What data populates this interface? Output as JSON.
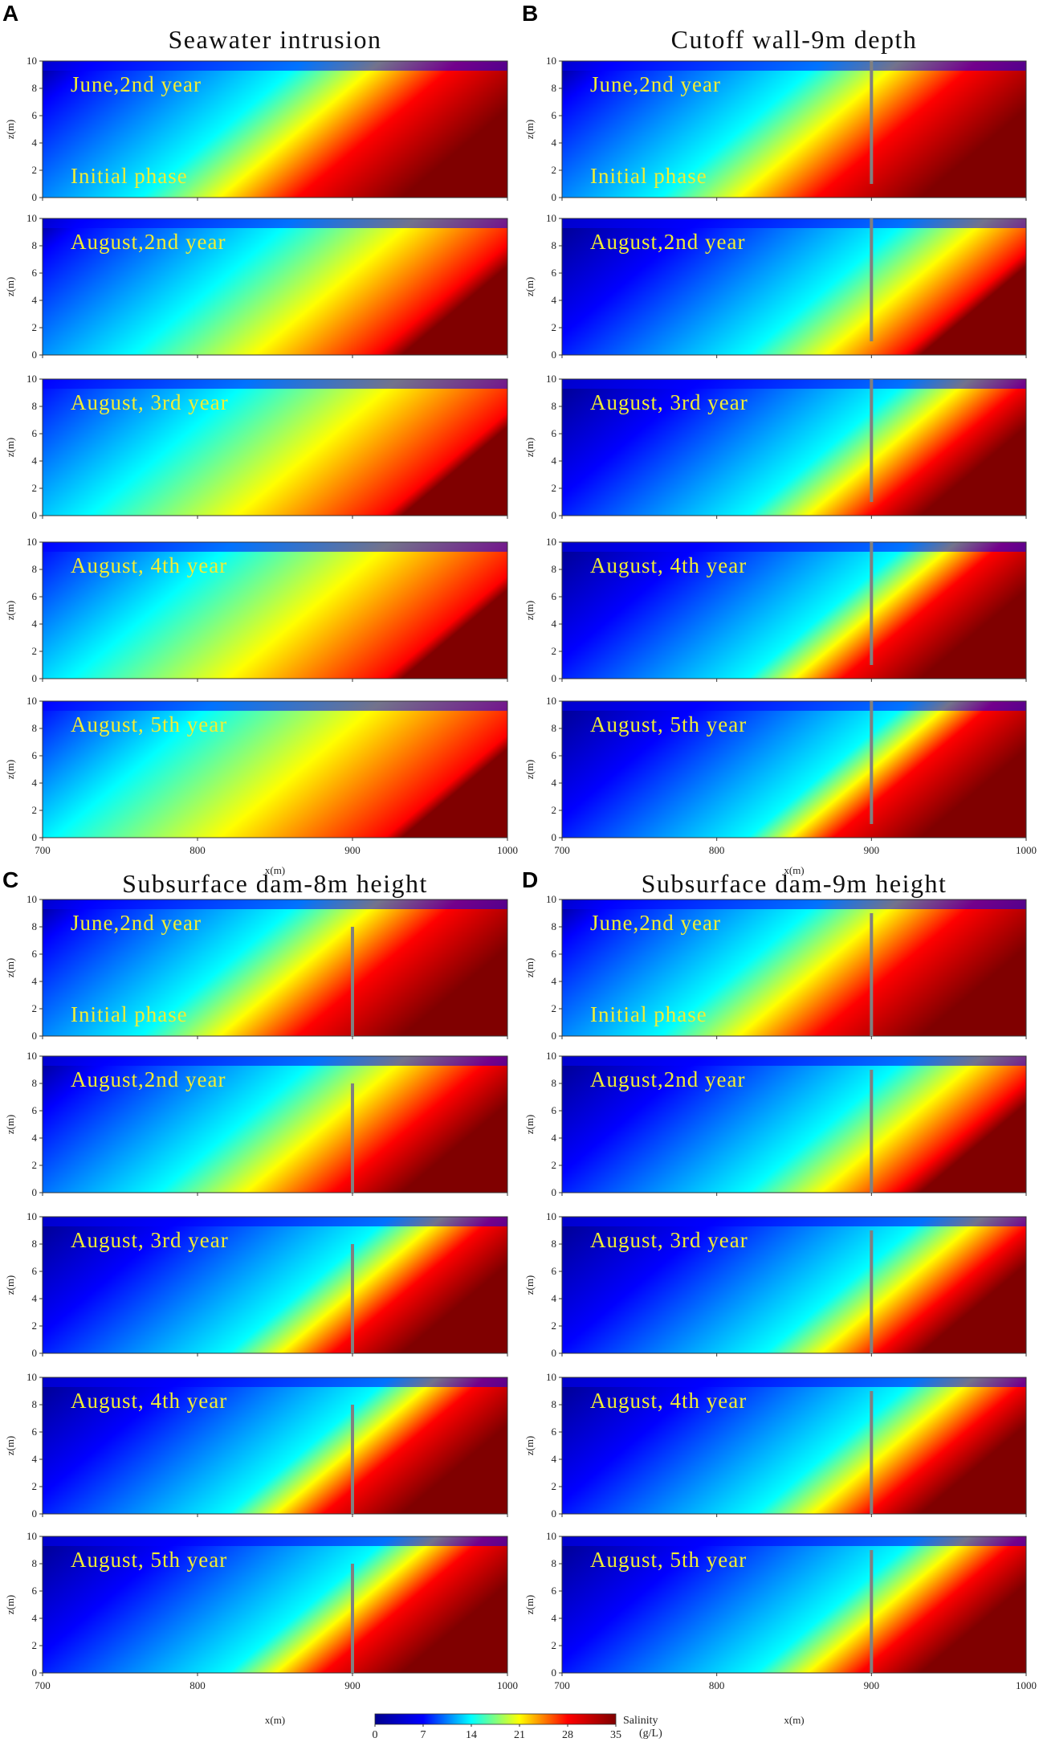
{
  "figure": {
    "colors": {
      "colormap": [
        "#00008f",
        "#0000ff",
        "#00ffff",
        "#ffff00",
        "#ff0000",
        "#800000"
      ],
      "barrier": "#808080",
      "annotation": "#f2ee33"
    },
    "colorbar": {
      "ticks": [
        "0",
        "7",
        "14",
        "21",
        "28",
        "35"
      ],
      "label_line1": "Salinity",
      "label_line2": "(g/L)"
    },
    "x_axis": {
      "ticks": [
        "700",
        "800",
        "900",
        "1000"
      ],
      "label": "x(m)"
    },
    "y_axis": {
      "ticks": [
        "0",
        "2",
        "4",
        "6",
        "8",
        "10"
      ],
      "label": "z(m)"
    }
  },
  "chart_data": [
    {
      "type": "heatmap",
      "letter": "A",
      "title": "Seawater intrusion",
      "barrier": null,
      "xlim": [
        700,
        1000
      ],
      "ylim": [
        0,
        10
      ],
      "xlabel": "x(m)",
      "ylabel": "z(m)",
      "colorbar_range": [
        0,
        35
      ],
      "subplots": [
        {
          "label": "June,2nd year",
          "label2": "Initial phase",
          "toe_x_at_bottom": 850,
          "saltwater_front_x": 940
        },
        {
          "label": "August,2nd year",
          "toe_x_at_bottom": 845,
          "saltwater_front_x": 985
        },
        {
          "label": "August, 3rd year",
          "toe_x_at_bottom": 820,
          "saltwater_front_x": 990
        },
        {
          "label": "August, 4th year",
          "toe_x_at_bottom": 810,
          "saltwater_front_x": 990
        },
        {
          "label": "August, 5th year",
          "toe_x_at_bottom": 800,
          "saltwater_front_x": 990
        }
      ]
    },
    {
      "type": "heatmap",
      "letter": "B",
      "title": "Cutoff wall-9m depth",
      "barrier": {
        "kind": "cutoff wall",
        "x": 900,
        "z_bottom": 1,
        "z_top": 10
      },
      "xlim": [
        700,
        1000
      ],
      "ylim": [
        0,
        10
      ],
      "xlabel": "x(m)",
      "ylabel": "z(m)",
      "colorbar_range": [
        0,
        35
      ],
      "subplots": [
        {
          "label": "June,2nd year",
          "label2": "Initial phase",
          "toe_x_at_bottom": 850,
          "saltwater_front_x": 940
        },
        {
          "label": "August,2nd year",
          "toe_x_at_bottom": 900,
          "saltwater_front_x": 990
        },
        {
          "label": "August, 3rd year",
          "toe_x_at_bottom": 900,
          "saltwater_front_x": 970
        },
        {
          "label": "August, 4th year",
          "toe_x_at_bottom": 900,
          "saltwater_front_x": 955
        },
        {
          "label": "August, 5th year",
          "toe_x_at_bottom": 900,
          "saltwater_front_x": 950
        }
      ]
    },
    {
      "type": "heatmap",
      "letter": "C",
      "title": "Subsurface dam-8m height",
      "barrier": {
        "kind": "subsurface dam",
        "x": 900,
        "z_bottom": 0,
        "z_top": 8
      },
      "xlim": [
        700,
        1000
      ],
      "ylim": [
        0,
        10
      ],
      "xlabel": "x(m)",
      "ylabel": "z(m)",
      "colorbar_range": [
        0,
        35
      ],
      "subplots": [
        {
          "label": "June,2nd year",
          "label2": "Initial phase",
          "toe_x_at_bottom": 850,
          "saltwater_front_x": 940
        },
        {
          "label": "August,2nd year",
          "toe_x_at_bottom": 860,
          "saltwater_front_x": 960
        },
        {
          "label": "August, 3rd year",
          "toe_x_at_bottom": 900,
          "saltwater_front_x": 960
        },
        {
          "label": "August, 4th year",
          "toe_x_at_bottom": 900,
          "saltwater_front_x": 955
        },
        {
          "label": "August, 5th year",
          "toe_x_at_bottom": 900,
          "saltwater_front_x": 955
        }
      ]
    },
    {
      "type": "heatmap",
      "letter": "D",
      "title": "Subsurface dam-9m height",
      "barrier": {
        "kind": "subsurface dam",
        "x": 900,
        "z_bottom": 0,
        "z_top": 9
      },
      "xlim": [
        700,
        1000
      ],
      "ylim": [
        0,
        10
      ],
      "xlabel": "x(m)",
      "ylabel": "z(m)",
      "colorbar_range": [
        0,
        35
      ],
      "subplots": [
        {
          "label": "June,2nd year",
          "label2": "Initial phase",
          "toe_x_at_bottom": 850,
          "saltwater_front_x": 940
        },
        {
          "label": "August,2nd year",
          "toe_x_at_bottom": 900,
          "saltwater_front_x": 985
        },
        {
          "label": "August, 3rd year",
          "toe_x_at_bottom": 910,
          "saltwater_front_x": 975
        },
        {
          "label": "August, 4th year",
          "toe_x_at_bottom": 905,
          "saltwater_front_x": 970
        },
        {
          "label": "August, 5th year",
          "toe_x_at_bottom": 905,
          "saltwater_front_x": 965
        }
      ]
    }
  ]
}
